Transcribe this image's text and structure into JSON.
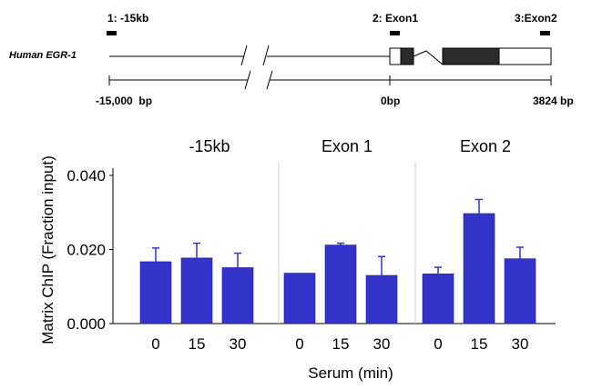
{
  "gene_map": {
    "gene_label": "Human EGR-1",
    "regions": [
      {
        "label": "1: -15kb",
        "position_bp": -15000
      },
      {
        "label": "2: Exon1",
        "position_bp": 0
      },
      {
        "label": "3:Exon2",
        "position_bp": 3824
      }
    ],
    "scale_labels": {
      "left": "-15,000  bp",
      "middle": "0bp",
      "right": "3824 bp"
    }
  },
  "chart_data": {
    "type": "bar",
    "ylabel": "Matrix ChIP (Fraction input)",
    "xlabel": "Serum (min)",
    "ylim": [
      0,
      0.04
    ],
    "yticks": [
      0.0,
      0.02,
      0.04
    ],
    "ytick_labels": [
      "0.000",
      "0.020",
      "0.040"
    ],
    "categories": [
      "0",
      "15",
      "30"
    ],
    "bar_color": "#3333cc",
    "panels": [
      {
        "title": "-15kb",
        "values": [
          0.0167,
          0.0177,
          0.0151
        ],
        "errors": [
          0.0037,
          0.004,
          0.0039
        ]
      },
      {
        "title": "Exon 1",
        "values": [
          0.0136,
          0.0212,
          0.013
        ],
        "errors": [
          0.0,
          0.0005,
          0.0051
        ]
      },
      {
        "title": "Exon 2",
        "values": [
          0.0134,
          0.0297,
          0.0175
        ],
        "errors": [
          0.0018,
          0.0038,
          0.0031
        ]
      }
    ]
  }
}
